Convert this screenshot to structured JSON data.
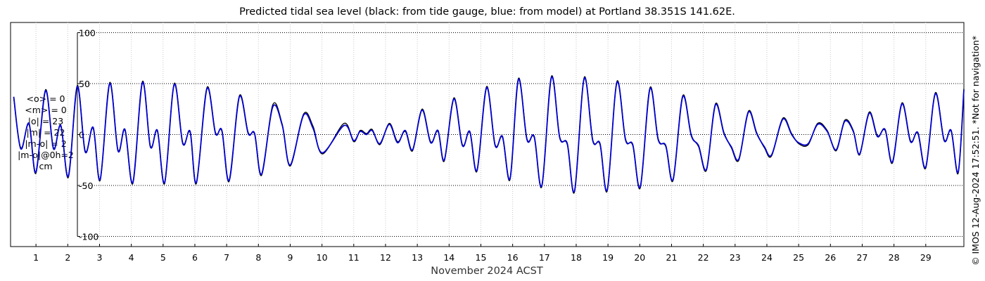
{
  "chart_data": {
    "type": "line",
    "title": "Predicted tidal sea level (black: from tide gauge, blue: from model) at Portland 38.351S 141.62E.",
    "xlabel": "November 2024 ACST",
    "ylabel": "",
    "xlim": [
      0.2,
      30.2
    ],
    "ylim": [
      -110,
      110
    ],
    "xticks": [
      1,
      2,
      3,
      4,
      5,
      6,
      7,
      8,
      9,
      10,
      11,
      12,
      13,
      14,
      15,
      16,
      17,
      18,
      19,
      20,
      21,
      22,
      23,
      24,
      25,
      26,
      27,
      28,
      29
    ],
    "xtick_labels": [
      "1",
      "2",
      "3",
      "4",
      "5",
      "6",
      "7",
      "8",
      "9",
      "10",
      "11",
      "12",
      "13",
      "14",
      "15",
      "16",
      "17",
      "18",
      "19",
      "20",
      "21",
      "22",
      "23",
      "24",
      "25",
      "26",
      "27",
      "28",
      "29"
    ],
    "yticks": [
      -100,
      -50,
      0,
      50,
      100
    ],
    "ytick_labels": [
      "-100",
      "-50",
      "0",
      "50",
      "100"
    ],
    "grid": {
      "x": true,
      "y": true,
      "style": "dotted"
    },
    "legend": "none",
    "series": [
      {
        "color": "#000000",
        "description_hidden": true,
        "points": [
          [
            0.3,
            36
          ],
          [
            0.52,
            -13
          ],
          [
            0.78,
            10
          ],
          [
            1.0,
            -38
          ],
          [
            1.3,
            44
          ],
          [
            1.55,
            -13
          ],
          [
            1.78,
            8
          ],
          [
            2.02,
            -42
          ],
          [
            2.3,
            48
          ],
          [
            2.55,
            -16
          ],
          [
            2.8,
            6
          ],
          [
            3.02,
            -45
          ],
          [
            3.32,
            51
          ],
          [
            3.58,
            -15
          ],
          [
            3.8,
            4
          ],
          [
            4.05,
            -48
          ],
          [
            4.35,
            52
          ],
          [
            4.6,
            -11
          ],
          [
            4.82,
            3
          ],
          [
            5.05,
            -48
          ],
          [
            5.35,
            50
          ],
          [
            5.62,
            -8
          ],
          [
            5.85,
            2
          ],
          [
            6.05,
            -48
          ],
          [
            6.38,
            46
          ],
          [
            6.65,
            2
          ],
          [
            6.85,
            3
          ],
          [
            7.08,
            -46
          ],
          [
            7.4,
            38
          ],
          [
            7.68,
            2
          ],
          [
            7.88,
            0
          ],
          [
            8.1,
            -40
          ],
          [
            8.45,
            29
          ],
          [
            8.75,
            10
          ],
          [
            9.0,
            -31
          ],
          [
            9.42,
            20
          ],
          [
            9.72,
            8
          ],
          [
            10.02,
            -19
          ],
          [
            10.7,
            11
          ],
          [
            11.0,
            -7
          ],
          [
            11.2,
            4
          ],
          [
            11.4,
            1
          ],
          [
            11.58,
            5
          ],
          [
            11.82,
            -10
          ],
          [
            12.12,
            11
          ],
          [
            12.38,
            -7
          ],
          [
            12.62,
            3
          ],
          [
            12.85,
            -16
          ],
          [
            13.15,
            25
          ],
          [
            13.42,
            -7
          ],
          [
            13.65,
            3
          ],
          [
            13.85,
            -26
          ],
          [
            14.15,
            36
          ],
          [
            14.42,
            -10
          ],
          [
            14.65,
            2
          ],
          [
            14.88,
            -36
          ],
          [
            15.18,
            47
          ],
          [
            15.45,
            -10
          ],
          [
            15.68,
            -3
          ],
          [
            15.92,
            -44
          ],
          [
            16.18,
            55
          ],
          [
            16.45,
            -4
          ],
          [
            16.68,
            -3
          ],
          [
            16.92,
            -51
          ],
          [
            17.22,
            57
          ],
          [
            17.48,
            -2
          ],
          [
            17.72,
            -10
          ],
          [
            17.95,
            -56
          ],
          [
            18.25,
            56
          ],
          [
            18.52,
            -5
          ],
          [
            18.75,
            -10
          ],
          [
            18.98,
            -55
          ],
          [
            19.28,
            52
          ],
          [
            19.55,
            -4
          ],
          [
            19.78,
            -11
          ],
          [
            20.02,
            -52
          ],
          [
            20.32,
            46
          ],
          [
            20.58,
            -4
          ],
          [
            20.82,
            -12
          ],
          [
            21.05,
            -45
          ],
          [
            21.35,
            38
          ],
          [
            21.62,
            0
          ],
          [
            21.85,
            -12
          ],
          [
            22.1,
            -35
          ],
          [
            22.38,
            30
          ],
          [
            22.65,
            2
          ],
          [
            22.88,
            -13
          ],
          [
            23.12,
            -25
          ],
          [
            23.42,
            23
          ],
          [
            23.68,
            2
          ],
          [
            23.92,
            -13
          ],
          [
            24.15,
            -21
          ],
          [
            24.5,
            16
          ],
          [
            24.78,
            1
          ],
          [
            25.0,
            -9
          ],
          [
            25.3,
            -10
          ],
          [
            25.6,
            11
          ],
          [
            25.9,
            4
          ],
          [
            26.18,
            -16
          ],
          [
            26.45,
            14
          ],
          [
            26.72,
            4
          ],
          [
            26.92,
            -20
          ],
          [
            27.22,
            22
          ],
          [
            27.48,
            -1
          ],
          [
            27.72,
            4
          ],
          [
            27.95,
            -28
          ],
          [
            28.25,
            31
          ],
          [
            28.52,
            -6
          ],
          [
            28.75,
            1
          ],
          [
            29.0,
            -33
          ],
          [
            29.3,
            41
          ],
          [
            29.58,
            -5
          ],
          [
            29.8,
            3
          ],
          [
            30.02,
            -38
          ],
          [
            30.2,
            45
          ]
        ]
      },
      {
        "color": "#0000cc",
        "description_hidden": true,
        "points": [
          [
            0.3,
            37
          ],
          [
            0.52,
            -14
          ],
          [
            0.78,
            11
          ],
          [
            1.0,
            -37
          ],
          [
            1.3,
            43
          ],
          [
            1.55,
            -14
          ],
          [
            1.78,
            9
          ],
          [
            2.02,
            -41
          ],
          [
            2.3,
            47
          ],
          [
            2.55,
            -17
          ],
          [
            2.8,
            7
          ],
          [
            3.02,
            -44
          ],
          [
            3.32,
            50
          ],
          [
            3.58,
            -16
          ],
          [
            3.8,
            5
          ],
          [
            4.05,
            -47
          ],
          [
            4.35,
            51
          ],
          [
            4.6,
            -12
          ],
          [
            4.82,
            4
          ],
          [
            5.05,
            -47
          ],
          [
            5.35,
            49
          ],
          [
            5.62,
            -9
          ],
          [
            5.85,
            3
          ],
          [
            6.05,
            -47
          ],
          [
            6.38,
            45
          ],
          [
            6.65,
            1
          ],
          [
            6.85,
            4
          ],
          [
            7.08,
            -45
          ],
          [
            7.4,
            37
          ],
          [
            7.68,
            1
          ],
          [
            7.88,
            1
          ],
          [
            8.1,
            -39
          ],
          [
            8.45,
            27
          ],
          [
            8.75,
            9
          ],
          [
            9.0,
            -30
          ],
          [
            9.42,
            19
          ],
          [
            9.72,
            6
          ],
          [
            10.02,
            -18
          ],
          [
            10.7,
            9
          ],
          [
            11.0,
            -6
          ],
          [
            11.2,
            3
          ],
          [
            11.4,
            0
          ],
          [
            11.58,
            4
          ],
          [
            11.82,
            -9
          ],
          [
            12.12,
            10
          ],
          [
            12.38,
            -8
          ],
          [
            12.62,
            4
          ],
          [
            12.85,
            -15
          ],
          [
            13.15,
            24
          ],
          [
            13.42,
            -8
          ],
          [
            13.65,
            4
          ],
          [
            13.85,
            -25
          ],
          [
            14.15,
            35
          ],
          [
            14.42,
            -11
          ],
          [
            14.65,
            3
          ],
          [
            14.88,
            -35
          ],
          [
            15.18,
            46
          ],
          [
            15.45,
            -11
          ],
          [
            15.68,
            -2
          ],
          [
            15.92,
            -43
          ],
          [
            16.18,
            54
          ],
          [
            16.45,
            -5
          ],
          [
            16.68,
            -2
          ],
          [
            16.92,
            -50
          ],
          [
            17.22,
            56
          ],
          [
            17.48,
            -3
          ],
          [
            17.72,
            -9
          ],
          [
            17.95,
            -55
          ],
          [
            18.25,
            55
          ],
          [
            18.52,
            -6
          ],
          [
            18.75,
            -9
          ],
          [
            18.98,
            -54
          ],
          [
            19.28,
            51
          ],
          [
            19.55,
            -5
          ],
          [
            19.78,
            -10
          ],
          [
            20.02,
            -51
          ],
          [
            20.32,
            45
          ],
          [
            20.58,
            -5
          ],
          [
            20.82,
            -11
          ],
          [
            21.05,
            -44
          ],
          [
            21.35,
            37
          ],
          [
            21.62,
            -1
          ],
          [
            21.85,
            -11
          ],
          [
            22.1,
            -34
          ],
          [
            22.38,
            29
          ],
          [
            22.65,
            1
          ],
          [
            22.88,
            -12
          ],
          [
            23.12,
            -24
          ],
          [
            23.42,
            22
          ],
          [
            23.68,
            1
          ],
          [
            23.92,
            -12
          ],
          [
            24.15,
            -20
          ],
          [
            24.5,
            15
          ],
          [
            24.78,
            0
          ],
          [
            25.0,
            -8
          ],
          [
            25.3,
            -9
          ],
          [
            25.6,
            10
          ],
          [
            25.9,
            3
          ],
          [
            26.18,
            -15
          ],
          [
            26.45,
            13
          ],
          [
            26.72,
            3
          ],
          [
            26.92,
            -19
          ],
          [
            27.22,
            21
          ],
          [
            27.48,
            -2
          ],
          [
            27.72,
            5
          ],
          [
            27.95,
            -27
          ],
          [
            28.25,
            30
          ],
          [
            28.52,
            -7
          ],
          [
            28.75,
            2
          ],
          [
            29.0,
            -32
          ],
          [
            29.3,
            40
          ],
          [
            29.58,
            -6
          ],
          [
            29.8,
            4
          ],
          [
            30.02,
            -37
          ],
          [
            30.2,
            44
          ]
        ]
      }
    ]
  },
  "stats": [
    "<o> = 0",
    "<m> = 0",
    "|o| = 23",
    "|m| = 22",
    "|m-o| = 2",
    "|m-o|@0h=2",
    "cm"
  ],
  "credit": "© IMOS 12-Aug-2024 17:52:51. *Not for navigation*"
}
